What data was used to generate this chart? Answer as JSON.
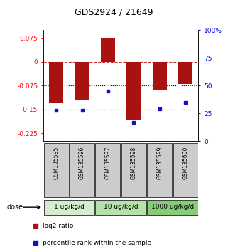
{
  "title": "GDS2924 / 21649",
  "samples": [
    "GSM135595",
    "GSM135596",
    "GSM135597",
    "GSM135598",
    "GSM135599",
    "GSM135600"
  ],
  "log2_ratios": [
    -0.13,
    -0.12,
    0.075,
    -0.185,
    -0.09,
    -0.07
  ],
  "percentile_ranks": [
    28,
    28,
    45,
    17,
    29,
    35
  ],
  "ylim_left": [
    -0.25,
    0.1
  ],
  "ylim_right": [
    0,
    100
  ],
  "yticks_left": [
    0.075,
    0,
    -0.075,
    -0.15,
    -0.225
  ],
  "yticks_right": [
    100,
    75,
    50,
    25,
    0
  ],
  "hlines": [
    0,
    -0.075,
    -0.15
  ],
  "hlines_styles": [
    "dashed",
    "dotted",
    "dotted"
  ],
  "dose_groups": [
    {
      "label": "1 ug/kg/d",
      "samples": [
        0,
        1
      ],
      "color": "#d4edcc"
    },
    {
      "label": "10 ug/kg/d",
      "samples": [
        2,
        3
      ],
      "color": "#b8e0aa"
    },
    {
      "label": "1000 ug/kg/d",
      "samples": [
        4,
        5
      ],
      "color": "#88cc77"
    }
  ],
  "bar_color": "#aa1111",
  "dot_color": "#1111cc",
  "sample_box_color": "#cccccc",
  "dose_row_label": "dose",
  "legend_items": [
    {
      "color": "#aa1111",
      "label": "log2 ratio"
    },
    {
      "color": "#1111cc",
      "label": "percentile rank within the sample"
    }
  ]
}
